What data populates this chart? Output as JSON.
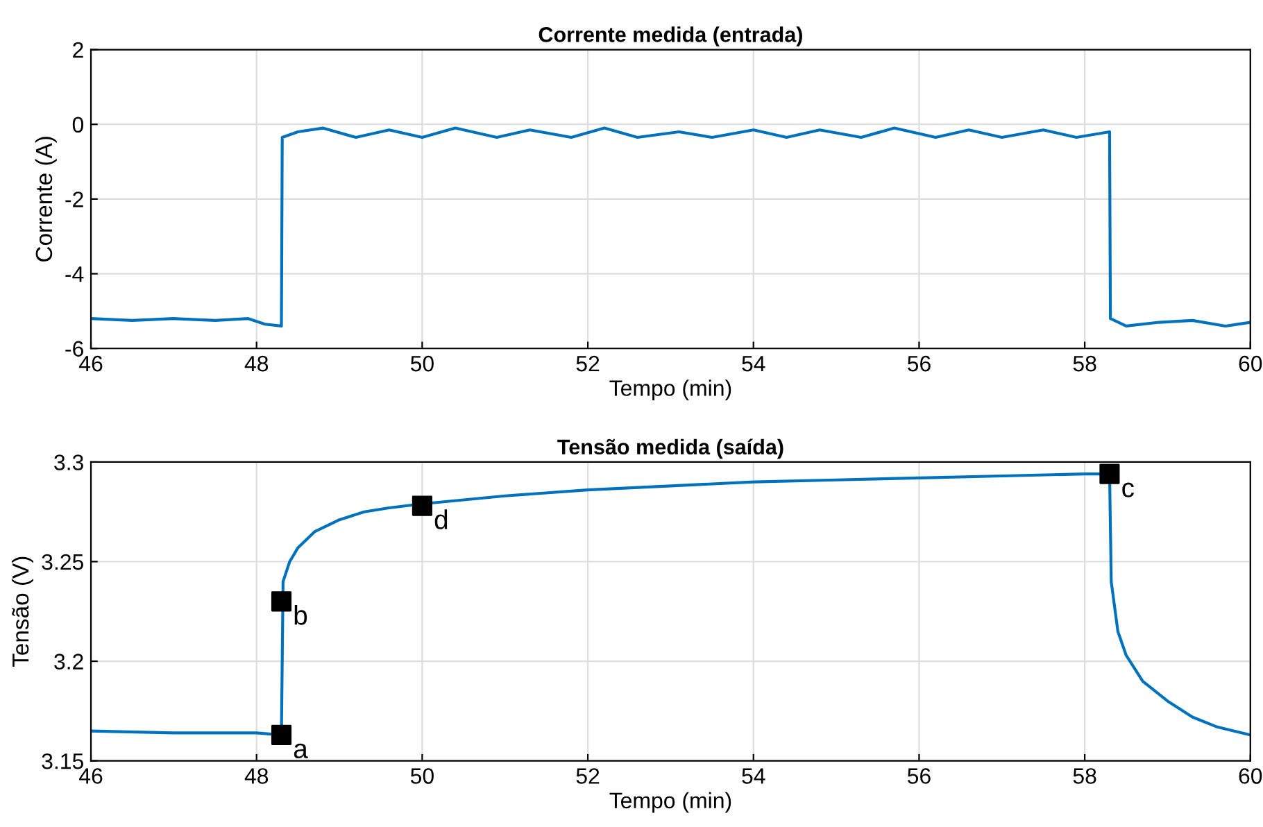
{
  "chart_data": [
    {
      "type": "line",
      "title": "Corrente medida (entrada)",
      "xlabel": "Tempo (min)",
      "ylabel": "Corrente (A)",
      "xlim": [
        46,
        60
      ],
      "xticks": [
        46,
        48,
        50,
        52,
        54,
        56,
        58,
        60
      ],
      "ylim": [
        -6,
        2
      ],
      "yticks": [
        -6,
        -4,
        -2,
        0,
        2
      ],
      "grid": true,
      "series": [
        {
          "color": "#0072bd",
          "x": [
            46,
            46.5,
            47,
            47.5,
            47.9,
            48.1,
            48.3,
            48.31,
            48.5,
            48.8,
            49.2,
            49.6,
            50.0,
            50.4,
            50.9,
            51.3,
            51.8,
            52.2,
            52.6,
            53.1,
            53.5,
            54.0,
            54.4,
            54.8,
            55.3,
            55.7,
            56.2,
            56.6,
            57.0,
            57.5,
            57.9,
            58.3,
            58.31,
            58.5,
            58.9,
            59.3,
            59.7,
            60
          ],
          "values": [
            -5.2,
            -5.25,
            -5.2,
            -5.25,
            -5.2,
            -5.35,
            -5.4,
            -0.35,
            -0.2,
            -0.1,
            -0.35,
            -0.15,
            -0.35,
            -0.1,
            -0.35,
            -0.15,
            -0.35,
            -0.1,
            -0.35,
            -0.2,
            -0.35,
            -0.15,
            -0.35,
            -0.15,
            -0.35,
            -0.1,
            -0.35,
            -0.15,
            -0.35,
            -0.15,
            -0.35,
            -0.2,
            -5.2,
            -5.4,
            -5.3,
            -5.25,
            -5.4,
            -5.3
          ]
        }
      ]
    },
    {
      "type": "line",
      "title": "Tensão medida (saída)",
      "xlabel": "Tempo (min)",
      "ylabel": "Tensão (V)",
      "xlim": [
        46,
        60
      ],
      "xticks": [
        46,
        48,
        50,
        52,
        54,
        56,
        58,
        60
      ],
      "ylim": [
        3.15,
        3.3
      ],
      "yticks": [
        3.15,
        3.2,
        3.25,
        3.3
      ],
      "grid": true,
      "series": [
        {
          "color": "#0072bd",
          "x": [
            46,
            47,
            48,
            48.3,
            48.32,
            48.4,
            48.5,
            48.7,
            49.0,
            49.3,
            49.6,
            50.0,
            50.5,
            51,
            52,
            53,
            54,
            55,
            56,
            57,
            58,
            58.3,
            58.32,
            58.4,
            58.5,
            58.7,
            59.0,
            59.3,
            59.6,
            60
          ],
          "values": [
            3.165,
            3.164,
            3.164,
            3.163,
            3.24,
            3.25,
            3.257,
            3.265,
            3.271,
            3.275,
            3.277,
            3.279,
            3.281,
            3.283,
            3.286,
            3.288,
            3.29,
            3.291,
            3.292,
            3.293,
            3.294,
            3.294,
            3.24,
            3.215,
            3.203,
            3.19,
            3.18,
            3.172,
            3.167,
            3.163
          ]
        },
        {
          "type": "scatter",
          "color": "#000000",
          "marker": "square",
          "x": [
            48.3,
            48.3,
            58.3,
            50.0
          ],
          "values": [
            3.163,
            3.23,
            3.294,
            3.278
          ]
        }
      ],
      "annotations": [
        {
          "text": "a",
          "x": 48.3,
          "y": 3.163
        },
        {
          "text": "b",
          "x": 48.3,
          "y": 3.23
        },
        {
          "text": "c",
          "x": 58.3,
          "y": 3.294
        },
        {
          "text": "d",
          "x": 50.0,
          "y": 3.278
        }
      ]
    }
  ]
}
